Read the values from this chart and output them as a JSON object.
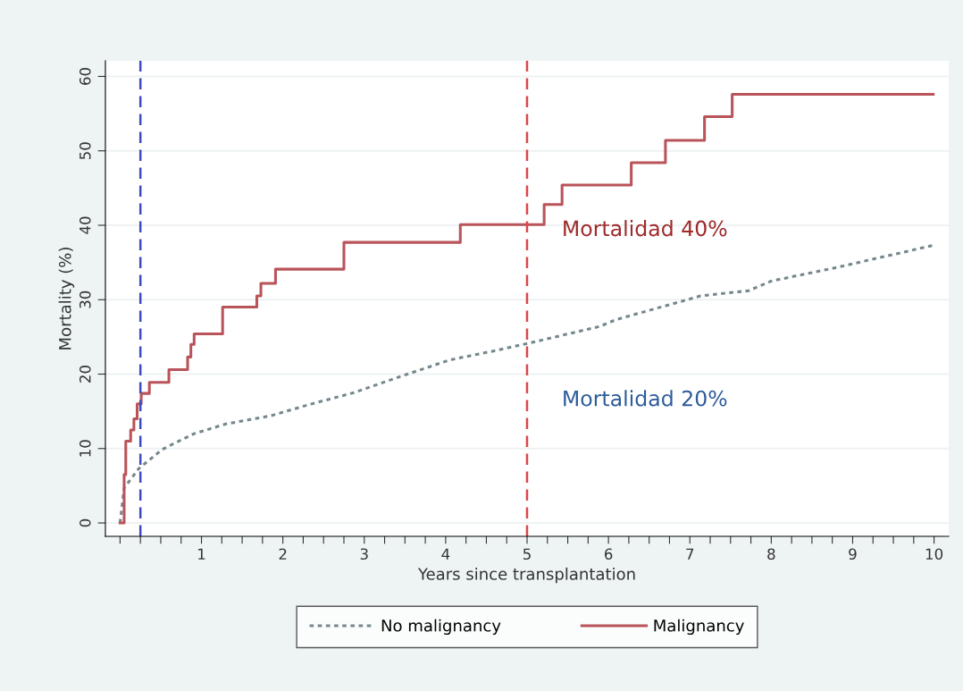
{
  "chart_data": {
    "type": "step",
    "xlabel": "Years since transplantation",
    "ylabel": "Mortality (%)",
    "xlim": [
      -0.18,
      10.18
    ],
    "ylim": [
      -1.8,
      62.1
    ],
    "xticks": [
      {
        "value": 0,
        "label": null
      },
      {
        "value": 0.25,
        "label": null
      },
      {
        "value": 0.5,
        "label": null
      },
      {
        "value": 0.75,
        "label": null
      },
      1,
      {
        "value": 1.25,
        "label": null
      },
      {
        "value": 1.5,
        "label": null
      },
      {
        "value": 1.75,
        "label": null
      },
      2,
      {
        "value": 2.25,
        "label": null
      },
      {
        "value": 2.5,
        "label": null
      },
      {
        "value": 2.75,
        "label": null
      },
      3,
      {
        "value": 3.25,
        "label": null
      },
      {
        "value": 3.5,
        "label": null
      },
      {
        "value": 3.75,
        "label": null
      },
      4,
      {
        "value": 4.25,
        "label": null
      },
      {
        "value": 4.5,
        "label": null
      },
      {
        "value": 4.75,
        "label": null
      },
      5,
      {
        "value": 5.25,
        "label": null
      },
      {
        "value": 5.5,
        "label": null
      },
      {
        "value": 5.75,
        "label": null
      },
      6,
      {
        "value": 6.25,
        "label": null
      },
      {
        "value": 6.5,
        "label": null
      },
      {
        "value": 6.75,
        "label": null
      },
      7,
      {
        "value": 7.25,
        "label": null
      },
      {
        "value": 7.5,
        "label": null
      },
      {
        "value": 7.75,
        "label": null
      },
      8,
      {
        "value": 8.25,
        "label": null
      },
      {
        "value": 8.5,
        "label": null
      },
      {
        "value": 8.75,
        "label": null
      },
      9,
      {
        "value": 9.25,
        "label": null
      },
      {
        "value": 9.5,
        "label": null
      },
      {
        "value": 9.75,
        "label": null
      },
      10
    ],
    "yticks": [
      0,
      10,
      20,
      30,
      40,
      50,
      60
    ],
    "grid": "y",
    "legend": "bottom",
    "series": [
      {
        "name": "No malignancy",
        "type": "line",
        "line_style": "dotted",
        "color": "#75878c",
        "x": [
          0,
          0.05,
          0.23,
          0.52,
          0.91,
          1.3,
          1.85,
          2.32,
          2.87,
          3.45,
          4.05,
          4.63,
          5.0,
          5.89,
          6.09,
          7.13,
          7.72,
          8.0,
          8.79,
          9.99
        ],
        "values": [
          0,
          4.7,
          7.3,
          9.9,
          12,
          13.3,
          14.4,
          15.9,
          17.5,
          19.7,
          21.9,
          23.2,
          24.1,
          26.4,
          27.3,
          30.5,
          31.2,
          32.5,
          34.3,
          37.3
        ]
      },
      {
        "name": "Malignancy",
        "line_style": "solid",
        "color": "#b9545a",
        "x": [
          0,
          0.05,
          0.07,
          0.13,
          0.17,
          0.21,
          0.26,
          0.36,
          0.6,
          0.83,
          0.87,
          0.91,
          0.93,
          1.26,
          1.68,
          1.73,
          1.91,
          2.75,
          4.18,
          5.21,
          5.43,
          6.28,
          6.7,
          7.18,
          7.52,
          9.99
        ],
        "values": [
          0,
          6.5,
          11,
          12.5,
          14,
          16,
          17.4,
          18.9,
          20.6,
          22.3,
          24,
          25.4,
          25.4,
          29,
          30.5,
          32.2,
          34.1,
          37.7,
          40.1,
          42.8,
          45.4,
          48.4,
          51.4,
          54.6,
          57.6,
          57.6
        ]
      }
    ],
    "ref_lines": [
      {
        "axis": "x",
        "value": 0.25,
        "color": "#3b4cc0",
        "line_style": "dashed"
      },
      {
        "axis": "x",
        "value": 5,
        "color": "#d9484c",
        "line_style": "dashed"
      }
    ],
    "annotations": [
      {
        "text": "Mortalidad 40%",
        "x": 5,
        "y": 40
      },
      {
        "text": "Mortalidad 20%",
        "x": 5,
        "y": 24
      }
    ]
  }
}
